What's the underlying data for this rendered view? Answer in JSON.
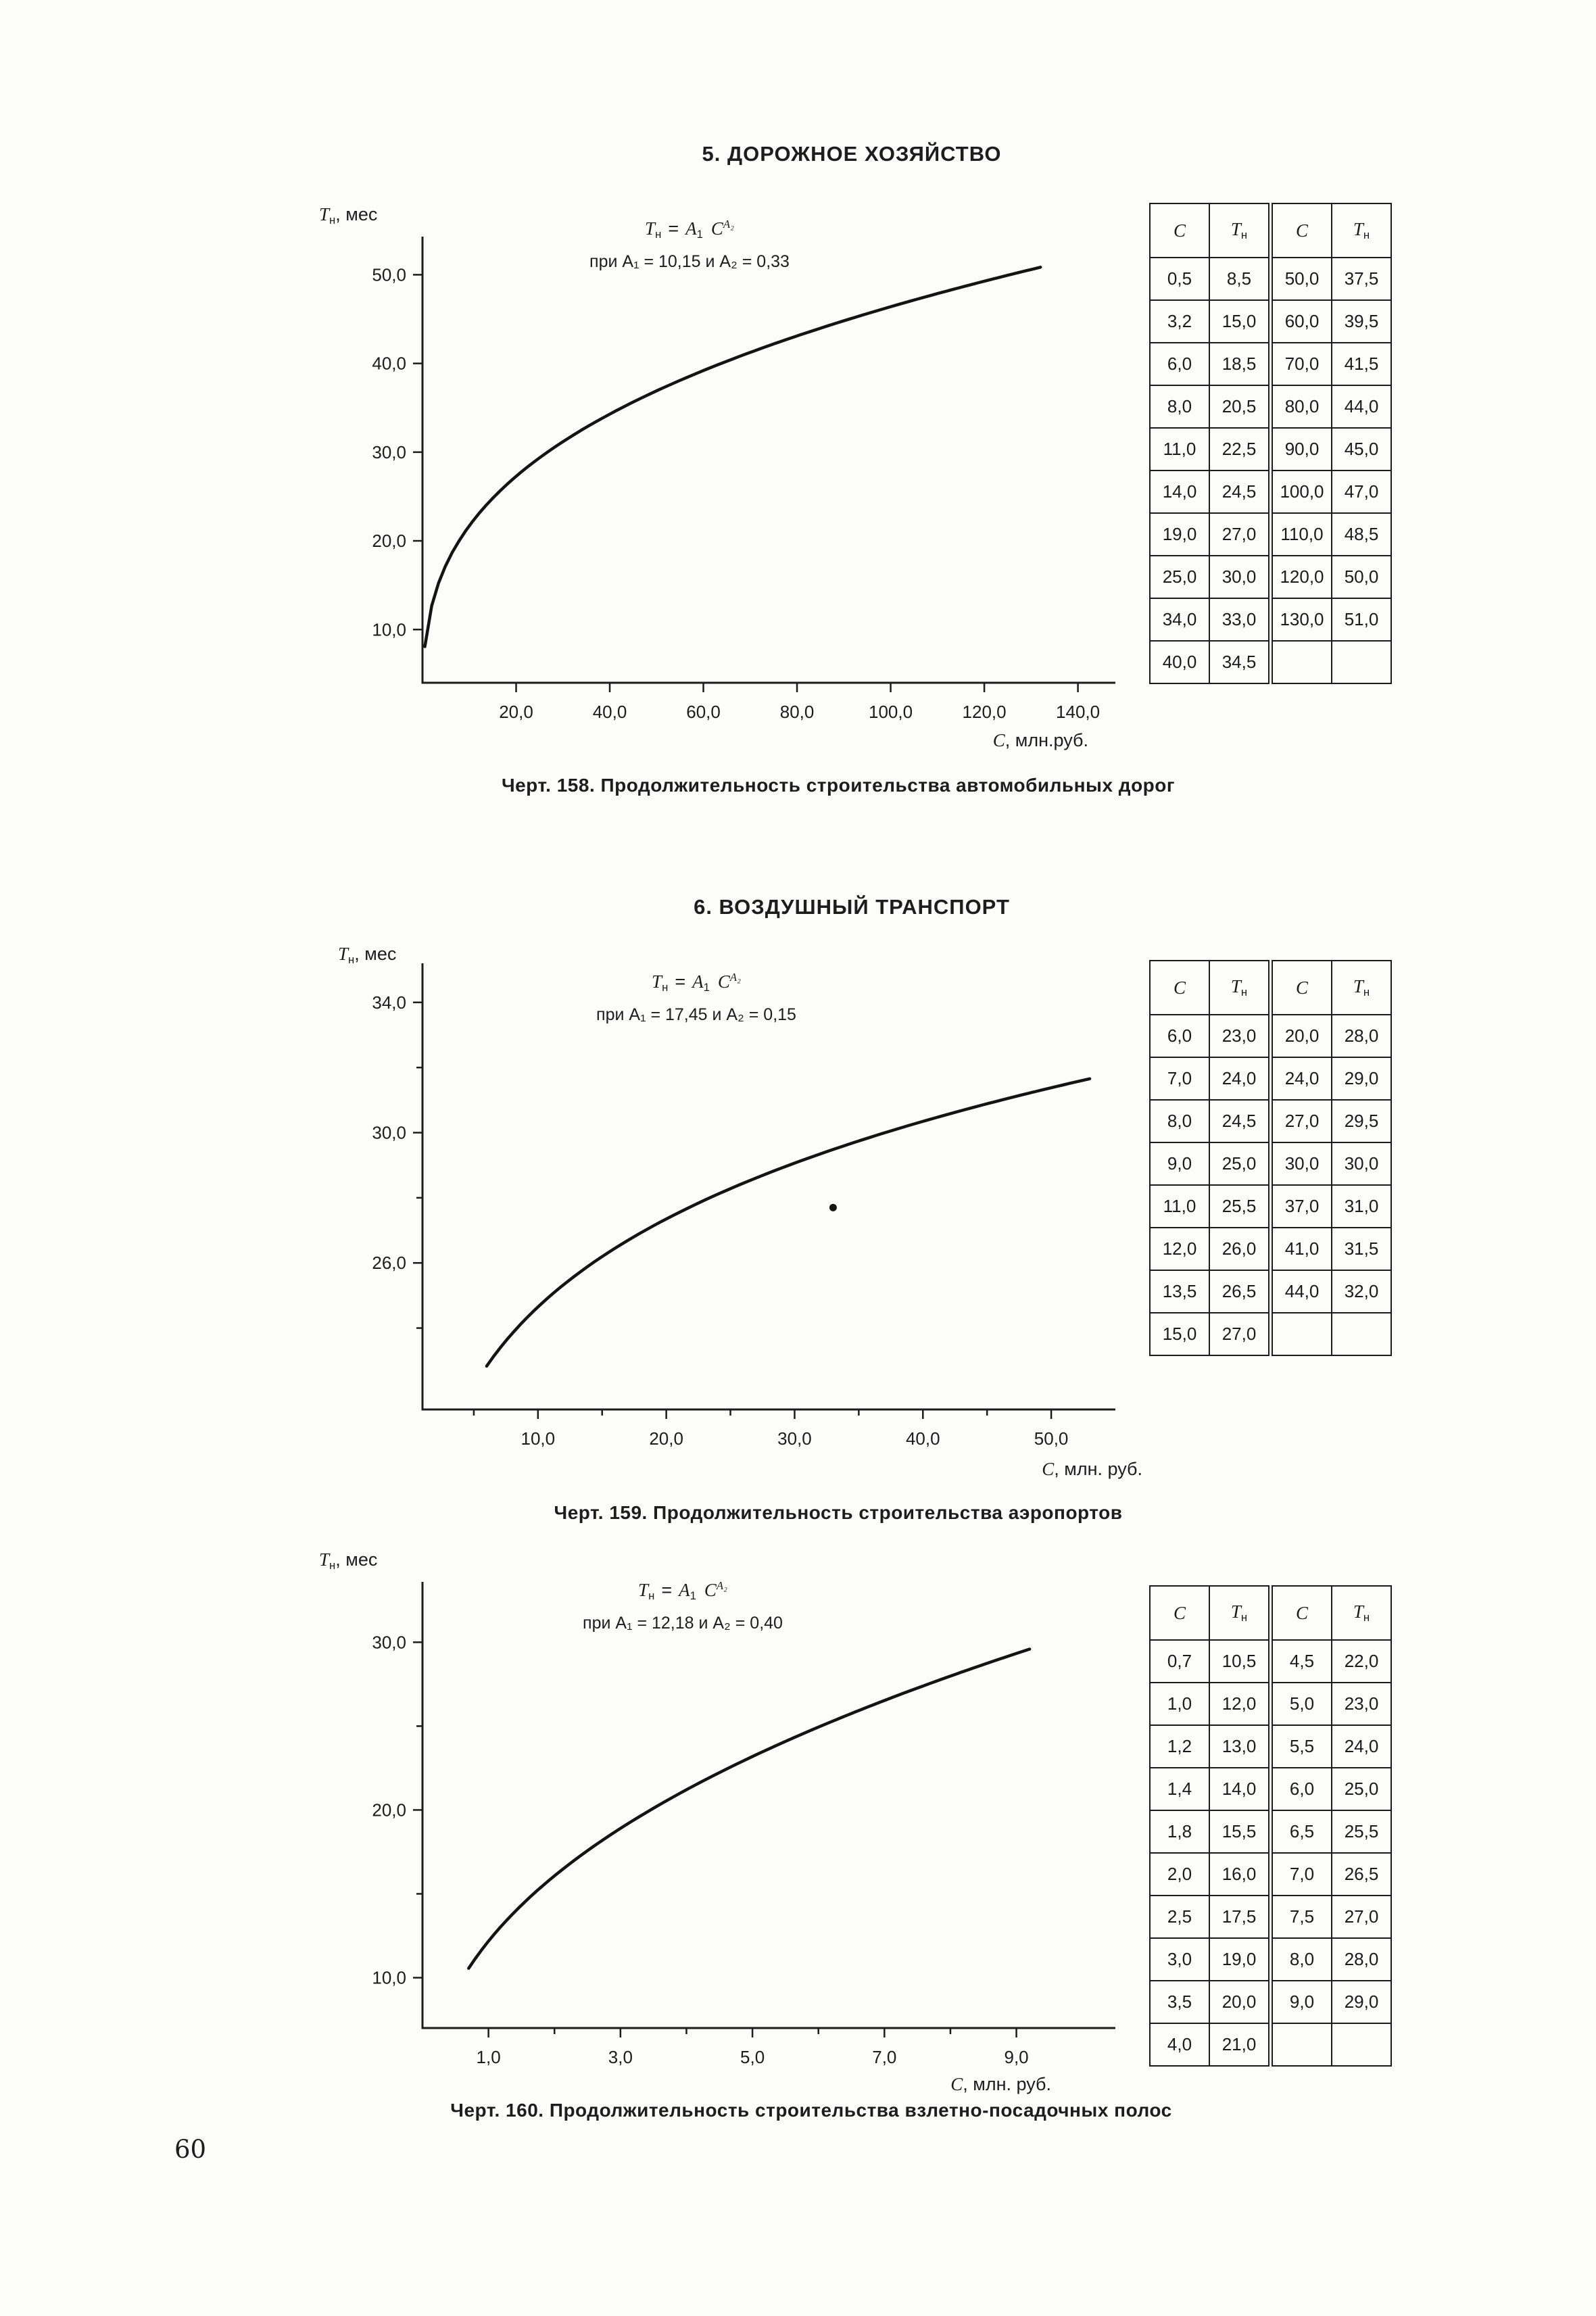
{
  "page": {
    "number": "60"
  },
  "chart_data": [
    {
      "type": "line",
      "section_title": "5. ДОРОЖНОЕ ХОЗЯЙСТВО",
      "caption": "Черт. 158. Продолжительность строительства автомобильных дорог",
      "formula": {
        "base": "T",
        "base_sub": "н",
        "eq": "=",
        "coef": "A",
        "coef_sub": "1",
        "var": "C",
        "sup": "A₂",
        "cond": "при A₁ = 10,15 и A₂ = 0,33"
      },
      "equation": {
        "a1": 10.15,
        "a2": 0.33
      },
      "ylabel": {
        "main": "T",
        "sub": "н",
        "rest": ", мес"
      },
      "xlabel": {
        "var": "C",
        "rest": ", млн.руб."
      },
      "xlim": [
        0,
        148
      ],
      "ylim": [
        4,
        54.3
      ],
      "curve_domain": [
        0.5,
        132
      ],
      "xticks": [
        {
          "v": 20,
          "label": "20,0"
        },
        {
          "v": 40,
          "label": "40,0"
        },
        {
          "v": 60,
          "label": "60,0"
        },
        {
          "v": 80,
          "label": "80,0"
        },
        {
          "v": 100,
          "label": "100,0"
        },
        {
          "v": 120,
          "label": "120,0"
        },
        {
          "v": 140,
          "label": "140,0"
        }
      ],
      "yticks": [
        {
          "v": 10,
          "label": "10,0"
        },
        {
          "v": 20,
          "label": "20,0"
        },
        {
          "v": 30,
          "label": "30,0"
        },
        {
          "v": 40,
          "label": "40,0"
        },
        {
          "v": 50,
          "label": "50,0"
        }
      ],
      "xminor": [],
      "yminor": [],
      "points": [
        [
          0.5,
          8.5
        ],
        [
          3.2,
          15
        ],
        [
          6,
          18.5
        ],
        [
          8,
          20.5
        ],
        [
          11,
          22.5
        ],
        [
          14,
          24.5
        ],
        [
          19,
          27
        ],
        [
          25,
          30
        ],
        [
          34,
          33
        ],
        [
          40,
          34.5
        ],
        [
          50,
          37.5
        ],
        [
          60,
          39.5
        ],
        [
          70,
          41.5
        ],
        [
          80,
          44
        ],
        [
          90,
          45
        ],
        [
          100,
          47
        ],
        [
          110,
          48.5
        ],
        [
          120,
          50
        ],
        [
          130,
          51
        ]
      ],
      "table": {
        "headers": [
          {
            "m": "C",
            "s": ""
          },
          {
            "m": "T",
            "s": "н"
          },
          {
            "m": "C",
            "s": ""
          },
          {
            "m": "T",
            "s": "н"
          }
        ],
        "rows": [
          [
            "0,5",
            "8,5",
            "50,0",
            "37,5"
          ],
          [
            "3,2",
            "15,0",
            "60,0",
            "39,5"
          ],
          [
            "6,0",
            "18,5",
            "70,0",
            "41,5"
          ],
          [
            "8,0",
            "20,5",
            "80,0",
            "44,0"
          ],
          [
            "11,0",
            "22,5",
            "90,0",
            "45,0"
          ],
          [
            "14,0",
            "24,5",
            "100,0",
            "47,0"
          ],
          [
            "19,0",
            "27,0",
            "110,0",
            "48,5"
          ],
          [
            "25,0",
            "30,0",
            "120,0",
            "50,0"
          ],
          [
            "34,0",
            "33,0",
            "130,0",
            "51,0"
          ],
          [
            "40,0",
            "34,5",
            "",
            ""
          ]
        ]
      }
    },
    {
      "type": "line",
      "section_title": "6. ВОЗДУШНЫЙ ТРАНСПОРТ",
      "caption": "Черт. 159. Продолжительность строительства аэропортов",
      "formula": {
        "base": "T",
        "base_sub": "н",
        "eq": "=",
        "coef": "A",
        "coef_sub": "1",
        "var": "C",
        "sup": "A₂",
        "cond": "при A₁ = 17,45 и A₂ = 0,15"
      },
      "equation": {
        "a1": 17.45,
        "a2": 0.15
      },
      "ylabel": {
        "main": "T",
        "sub": "н",
        "rest": ", мес"
      },
      "xlabel": {
        "var": "C",
        "rest": ", млн. руб."
      },
      "xlim": [
        1,
        55
      ],
      "ylim": [
        21.5,
        35.2
      ],
      "curve_domain": [
        6,
        53
      ],
      "xticks": [
        {
          "v": 10,
          "label": "10,0"
        },
        {
          "v": 20,
          "label": "20,0"
        },
        {
          "v": 30,
          "label": "30,0"
        },
        {
          "v": 40,
          "label": "40,0"
        },
        {
          "v": 50,
          "label": "50,0"
        }
      ],
      "yticks": [
        {
          "v": 26,
          "label": "26,0"
        },
        {
          "v": 30,
          "label": "30,0"
        },
        {
          "v": 34,
          "label": "34,0"
        }
      ],
      "xminor": [
        5,
        15,
        25,
        35,
        45
      ],
      "yminor": [
        24,
        28,
        32
      ],
      "marker": {
        "x": 33,
        "y": 27.7
      },
      "points": [
        [
          6,
          23
        ],
        [
          7,
          24
        ],
        [
          8,
          24.5
        ],
        [
          9,
          25
        ],
        [
          11,
          25.5
        ],
        [
          12,
          26
        ],
        [
          13.5,
          26.5
        ],
        [
          15,
          27
        ],
        [
          20,
          28
        ],
        [
          24,
          29
        ],
        [
          27,
          29.5
        ],
        [
          30,
          30
        ],
        [
          37,
          31
        ],
        [
          41,
          31.5
        ],
        [
          44,
          32
        ]
      ],
      "table": {
        "headers": [
          {
            "m": "C",
            "s": ""
          },
          {
            "m": "T",
            "s": "н"
          },
          {
            "m": "C",
            "s": ""
          },
          {
            "m": "T",
            "s": "н"
          }
        ],
        "rows": [
          [
            "6,0",
            "23,0",
            "20,0",
            "28,0"
          ],
          [
            "7,0",
            "24,0",
            "24,0",
            "29,0"
          ],
          [
            "8,0",
            "24,5",
            "27,0",
            "29,5"
          ],
          [
            "9,0",
            "25,0",
            "30,0",
            "30,0"
          ],
          [
            "11,0",
            "25,5",
            "37,0",
            "31,0"
          ],
          [
            "12,0",
            "26,0",
            "41,0",
            "31,5"
          ],
          [
            "13,5",
            "26,5",
            "44,0",
            "32,0"
          ],
          [
            "15,0",
            "27,0",
            "",
            ""
          ]
        ]
      }
    },
    {
      "type": "line",
      "section_title": "",
      "caption": "Черт. 160. Продолжительность строительства взлетно-посадочных полос",
      "formula": {
        "base": "T",
        "base_sub": "н",
        "eq": "=",
        "coef": "A",
        "coef_sub": "1",
        "var": "C",
        "sup": "A₂",
        "cond": "при A₁ = 12,18 и A₂ = 0,40"
      },
      "equation": {
        "a1": 12.18,
        "a2": 0.4
      },
      "ylabel": {
        "main": "T",
        "sub": "н",
        "rest": ", мес"
      },
      "xlabel": {
        "var": "C",
        "rest": ", млн. руб."
      },
      "xlim": [
        0,
        10.5
      ],
      "ylim": [
        7,
        33.6
      ],
      "curve_domain": [
        0.7,
        9.2
      ],
      "xticks": [
        {
          "v": 1,
          "label": "1,0"
        },
        {
          "v": 3,
          "label": "3,0"
        },
        {
          "v": 5,
          "label": "5,0"
        },
        {
          "v": 7,
          "label": "7,0"
        },
        {
          "v": 9,
          "label": "9,0"
        }
      ],
      "yticks": [
        {
          "v": 10,
          "label": "10,0"
        },
        {
          "v": 20,
          "label": "20,0"
        },
        {
          "v": 30,
          "label": "30,0"
        }
      ],
      "xminor": [
        2,
        4,
        6,
        8
      ],
      "yminor": [
        15,
        25
      ],
      "points": [
        [
          0.7,
          10.5
        ],
        [
          1,
          12
        ],
        [
          1.2,
          13
        ],
        [
          1.4,
          14
        ],
        [
          1.8,
          15.5
        ],
        [
          2,
          16
        ],
        [
          2.5,
          17.5
        ],
        [
          3,
          19
        ],
        [
          3.5,
          20
        ],
        [
          4,
          21
        ],
        [
          4.5,
          22
        ],
        [
          5,
          23
        ],
        [
          5.5,
          24
        ],
        [
          6,
          25
        ],
        [
          6.5,
          25.5
        ],
        [
          7,
          26.5
        ],
        [
          7.5,
          27
        ],
        [
          8,
          28
        ],
        [
          9,
          29
        ]
      ],
      "table": {
        "headers": [
          {
            "m": "C",
            "s": ""
          },
          {
            "m": "T",
            "s": "н"
          },
          {
            "m": "C",
            "s": ""
          },
          {
            "m": "T",
            "s": "н"
          }
        ],
        "rows": [
          [
            "0,7",
            "10,5",
            "4,5",
            "22,0"
          ],
          [
            "1,0",
            "12,0",
            "5,0",
            "23,0"
          ],
          [
            "1,2",
            "13,0",
            "5,5",
            "24,0"
          ],
          [
            "1,4",
            "14,0",
            "6,0",
            "25,0"
          ],
          [
            "1,8",
            "15,5",
            "6,5",
            "25,5"
          ],
          [
            "2,0",
            "16,0",
            "7,0",
            "26,5"
          ],
          [
            "2,5",
            "17,5",
            "7,5",
            "27,0"
          ],
          [
            "3,0",
            "19,0",
            "8,0",
            "28,0"
          ],
          [
            "3,5",
            "20,0",
            "9,0",
            "29,0"
          ],
          [
            "4,0",
            "21,0",
            "",
            ""
          ]
        ]
      }
    }
  ]
}
